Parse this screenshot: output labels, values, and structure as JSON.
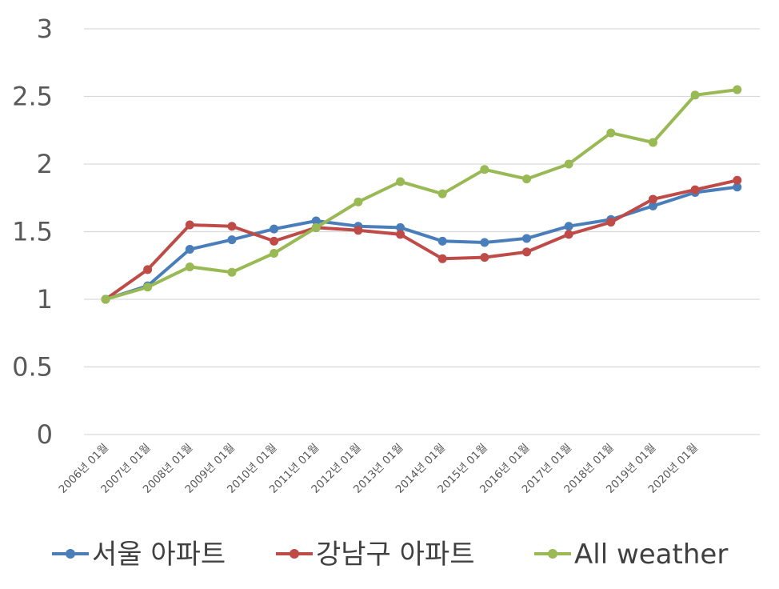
{
  "chart_data": {
    "type": "line",
    "title": "",
    "xlabel": "",
    "ylabel": "",
    "ylim": [
      0,
      3
    ],
    "yticks": [
      "0",
      "0.5",
      "1",
      "1.5",
      "2",
      "2.5",
      "3"
    ],
    "grid": true,
    "legend_position": "bottom",
    "categories": [
      "2006년 01월",
      "2007년 01월",
      "2008년 01월",
      "2009년 01월",
      "2010년 01월",
      "2011년 01월",
      "2012년 01월",
      "2013년 01월",
      "2014년 01월",
      "2015년 01월",
      "2016년 01월",
      "2017년 01월",
      "2018년 01월",
      "2019년 01월",
      "2020년 01월",
      ""
    ],
    "series": [
      {
        "name": "서울 아파트",
        "color": "#4a7ebb",
        "values": [
          1.0,
          1.1,
          1.37,
          1.44,
          1.52,
          1.58,
          1.54,
          1.53,
          1.43,
          1.42,
          1.45,
          1.54,
          1.59,
          1.69,
          1.79,
          1.83
        ]
      },
      {
        "name": "강남구 아파트",
        "color": "#be4b48",
        "values": [
          1.0,
          1.22,
          1.55,
          1.54,
          1.43,
          1.53,
          1.51,
          1.48,
          1.3,
          1.31,
          1.35,
          1.48,
          1.57,
          1.74,
          1.81,
          1.88
        ]
      },
      {
        "name": "All weather",
        "color": "#98b954",
        "values": [
          1.0,
          1.09,
          1.24,
          1.2,
          1.34,
          1.53,
          1.72,
          1.87,
          1.78,
          1.96,
          1.89,
          2.0,
          2.23,
          2.16,
          2.51,
          2.55
        ]
      }
    ]
  }
}
